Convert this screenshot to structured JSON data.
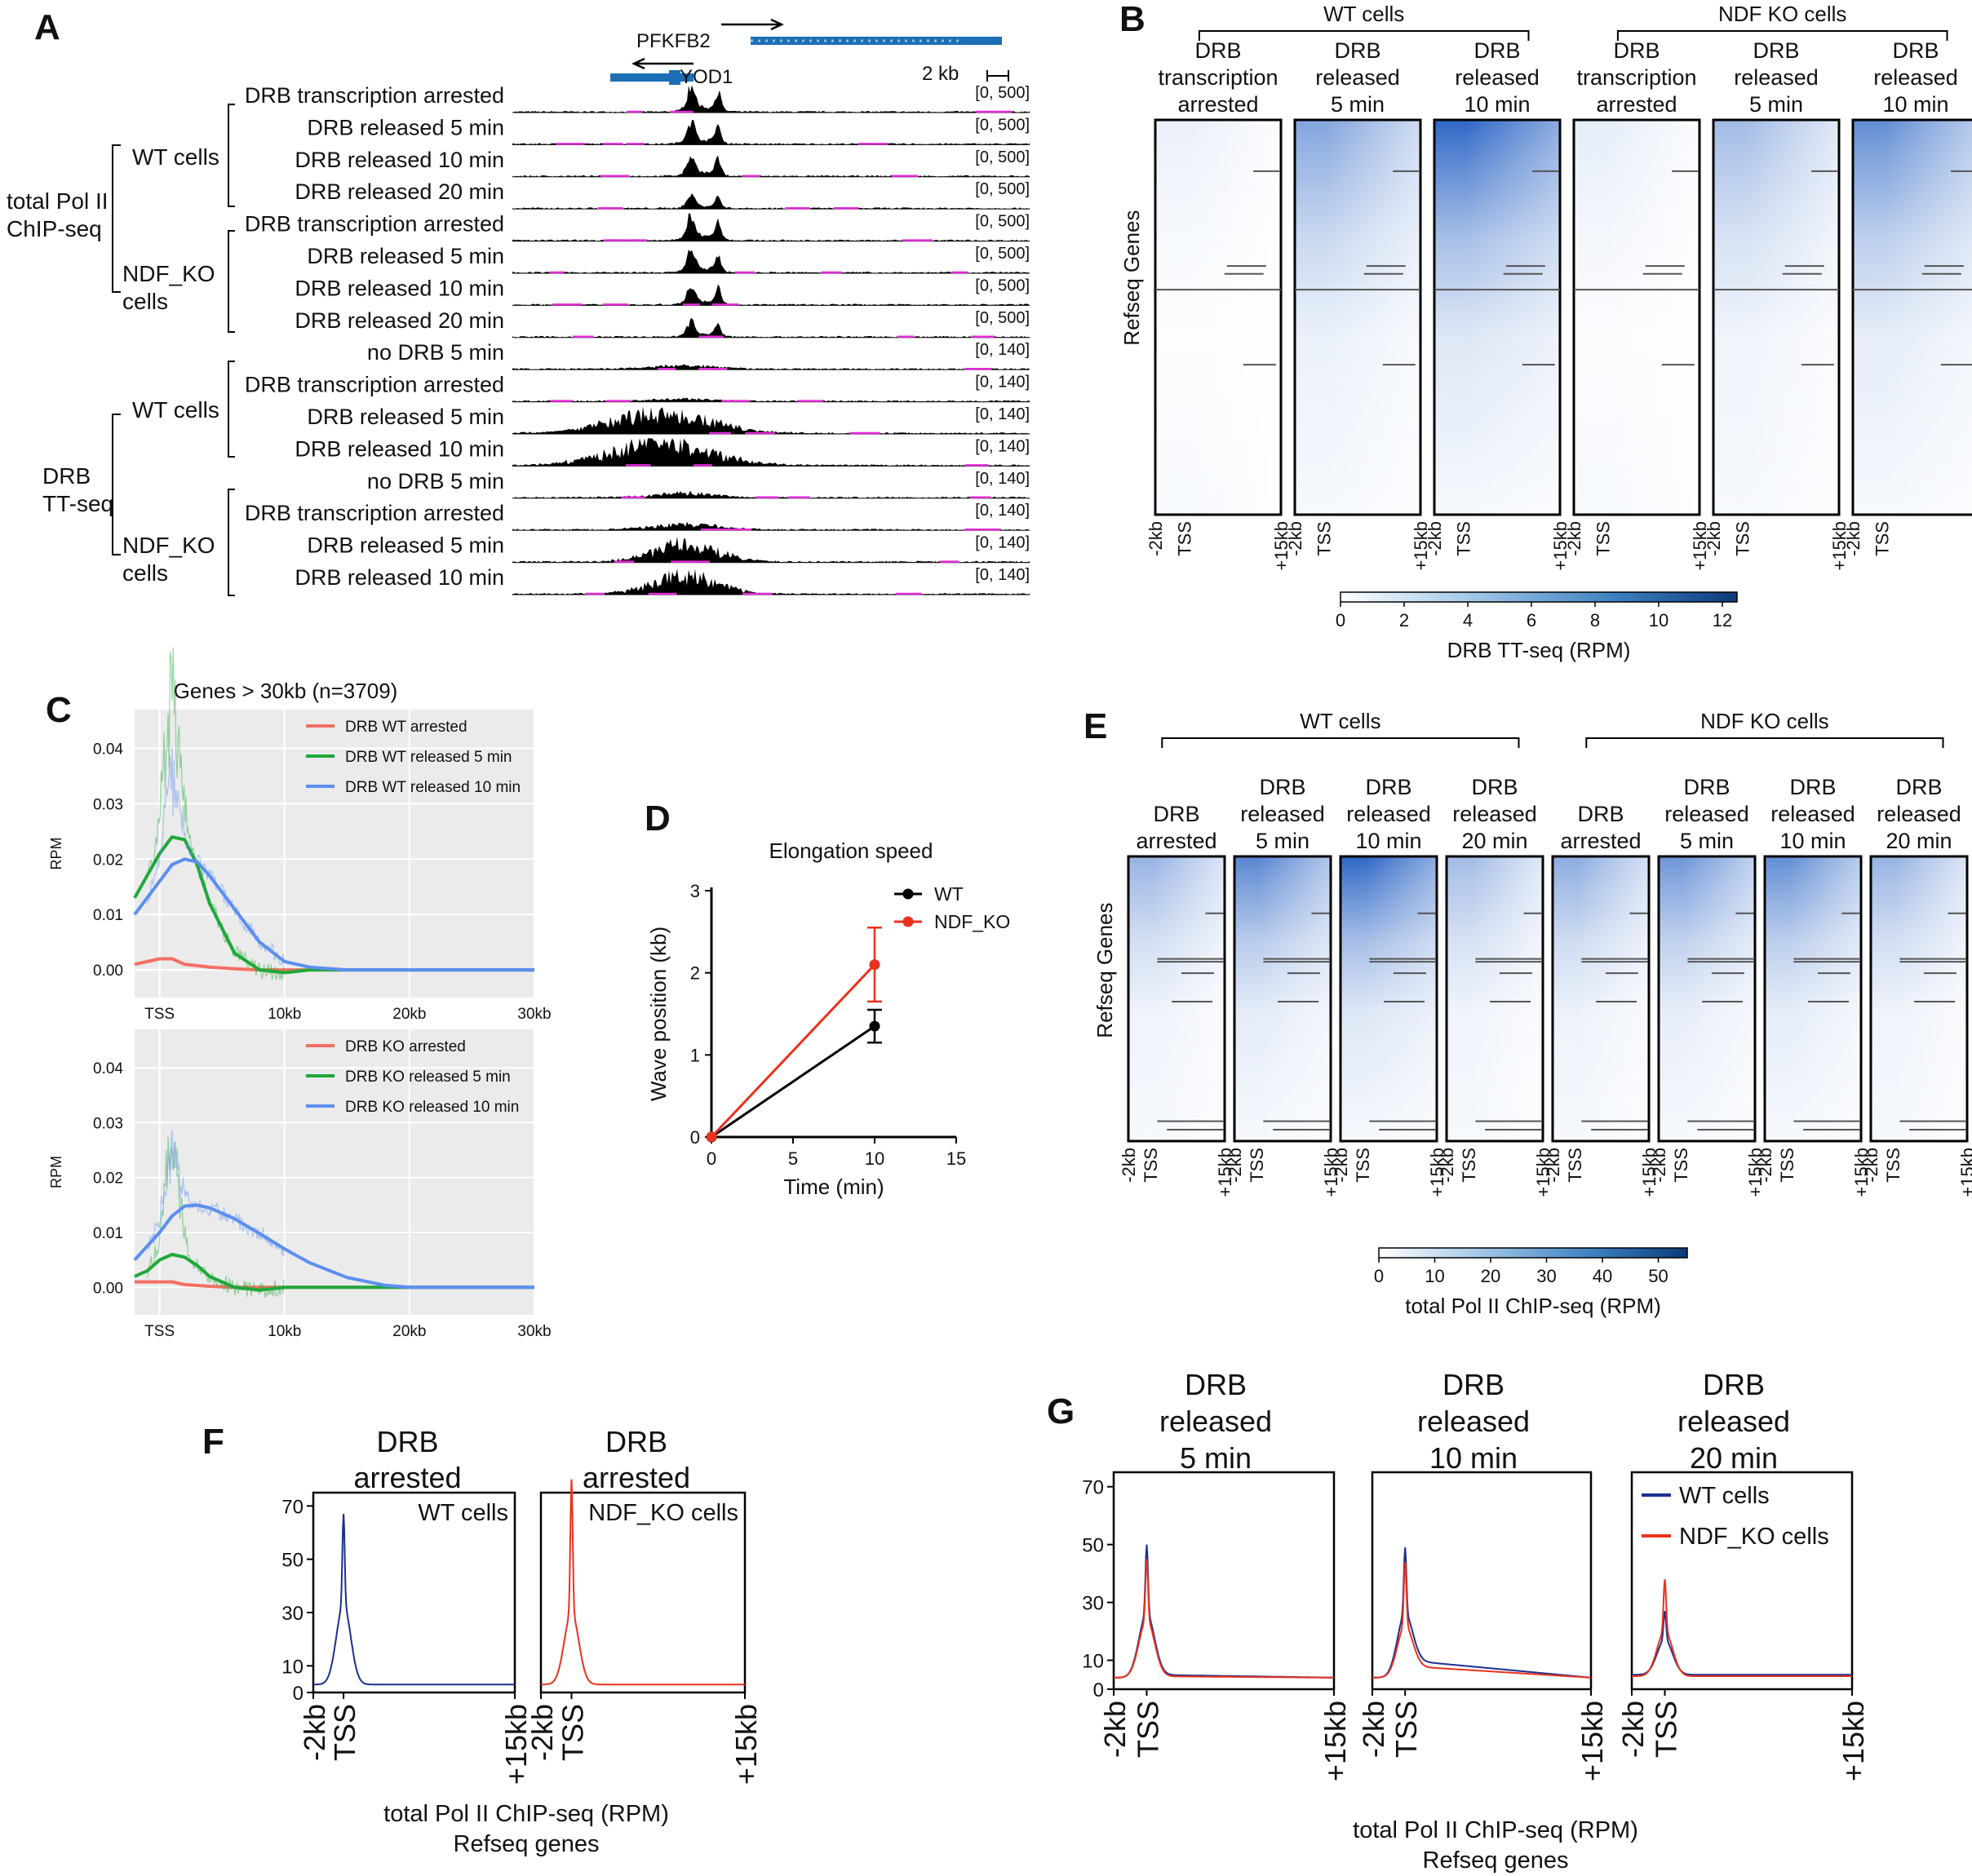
{
  "panels": {
    "A": {
      "label": "A",
      "genes": {
        "gene1": "PFKFB2",
        "gene2": "YOD1",
        "scale": "2 kb"
      },
      "groups": {
        "pol2": "total Pol II\nChIP-seq",
        "tt": "DRB\nTT-seq",
        "wt": "WT cells",
        "ko": "NDF_KO\ncells"
      },
      "tracks": [
        {
          "label": "DRB transcription arrested",
          "range": "[0, 500]",
          "kind": "chip",
          "amp": 1.0
        },
        {
          "label": "DRB released 5 min",
          "range": "[0, 500]",
          "kind": "chip",
          "amp": 0.9
        },
        {
          "label": "DRB released 10 min",
          "range": "[0, 500]",
          "kind": "chip",
          "amp": 0.8
        },
        {
          "label": "DRB released 20 min",
          "range": "[0, 500]",
          "kind": "chip",
          "amp": 0.55
        },
        {
          "label": "DRB transcription arrested",
          "range": "[0, 500]",
          "kind": "chip",
          "amp": 1.0
        },
        {
          "label": "DRB released 5 min",
          "range": "[0, 500]",
          "kind": "chip",
          "amp": 0.85
        },
        {
          "label": "DRB released 10 min",
          "range": "[0, 500]",
          "kind": "chip",
          "amp": 0.8
        },
        {
          "label": "DRB released 20 min",
          "range": "[0, 500]",
          "kind": "chip",
          "amp": 0.6
        },
        {
          "label": "no DRB 5 min",
          "range": "[0, 140]",
          "kind": "tt",
          "amp": 0.15
        },
        {
          "label": "DRB transcription arrested",
          "range": "[0, 140]",
          "kind": "tt",
          "amp": 0.1
        },
        {
          "label": "DRB released 5 min",
          "range": "[0, 140]",
          "kind": "tt",
          "amp": 0.9
        },
        {
          "label": "DRB released 10 min",
          "range": "[0, 140]",
          "kind": "tt",
          "amp": 1.0
        },
        {
          "label": "no DRB 5 min",
          "range": "[0, 140]",
          "kind": "tt",
          "amp": 0.2
        },
        {
          "label": "DRB transcription arrested",
          "range": "[0, 140]",
          "kind": "tt",
          "amp": 0.25
        },
        {
          "label": "DRB released 5 min",
          "range": "[0, 140]",
          "kind": "tt",
          "amp": 0.8
        },
        {
          "label": "DRB released 10 min",
          "range": "[0, 140]",
          "kind": "tt",
          "amp": 0.85
        }
      ]
    },
    "B": {
      "label": "B",
      "group_wt": "WT cells",
      "group_ko": "NDF KO cells",
      "columns": [
        {
          "title": "DRB\ntranscription\narrested",
          "intensity": 0.1
        },
        {
          "title": "DRB\nreleased\n5 min",
          "intensity": 0.6
        },
        {
          "title": "DRB\nreleased\n10 min",
          "intensity": 1.0
        },
        {
          "title": "DRB\ntranscription\narrested",
          "intensity": 0.12
        },
        {
          "title": "DRB\nreleased\n5 min",
          "intensity": 0.45
        },
        {
          "title": "DRB\nreleased\n10 min",
          "intensity": 0.75
        }
      ],
      "ylabel": "Refseq Genes",
      "xticks": [
        "-2kb",
        "TSS",
        "+15kb"
      ],
      "colorbar_ticks": [
        "0",
        "2",
        "4",
        "6",
        "8",
        "10",
        "12"
      ],
      "colorbar_label": "DRB TT-seq (RPM)"
    },
    "E": {
      "label": "E",
      "group_wt": "WT cells",
      "group_ko": "NDF KO cells",
      "columns": [
        {
          "title": "DRB\narrested",
          "intensity": 0.5
        },
        {
          "title": "DRB\nreleased\n5 min",
          "intensity": 0.8
        },
        {
          "title": "DRB\nreleased\n10 min",
          "intensity": 1.0
        },
        {
          "title": "DRB\nreleased\n20 min",
          "intensity": 0.45
        },
        {
          "title": "DRB\narrested",
          "intensity": 0.55
        },
        {
          "title": "DRB\nreleased\n5 min",
          "intensity": 0.7
        },
        {
          "title": "DRB\nreleased\n10 min",
          "intensity": 0.75
        },
        {
          "title": "DRB\nreleased\n20 min",
          "intensity": 0.5
        }
      ],
      "ylabel": "Refseq Genes",
      "xticks": [
        "-2kb",
        "TSS",
        "+15kb"
      ],
      "colorbar_ticks": [
        "0",
        "10",
        "20",
        "30",
        "40",
        "50"
      ],
      "colorbar_label": "total Pol II ChIP-seq (RPM)"
    }
  },
  "chart_data": [
    {
      "id": "C-top",
      "label": "C",
      "type": "line",
      "title": "Genes > 30kb (n=3709)",
      "ylabel": "RPM",
      "xlabel": "",
      "xlim": [
        -2,
        30
      ],
      "ylim": [
        -0.005,
        0.047
      ],
      "xticks": [
        {
          "v": 0,
          "t": "TSS"
        },
        {
          "v": 10,
          "t": "10kb"
        },
        {
          "v": 20,
          "t": "20kb"
        },
        {
          "v": 30,
          "t": "30kb"
        }
      ],
      "yticks": [
        0.0,
        0.01,
        0.02,
        0.03,
        0.04
      ],
      "ytick_labels": [
        "0.00",
        "0.01",
        "0.02",
        "0.03",
        "0.04"
      ],
      "series": [
        {
          "name": "DRB WT arrested",
          "color": "#f36f63",
          "x": [
            -2,
            0,
            1,
            2,
            4,
            6,
            8,
            10,
            30
          ],
          "y": [
            0.001,
            0.002,
            0.002,
            0.001,
            0.0005,
            0.0002,
            0.0,
            0.0,
            0.0
          ]
        },
        {
          "name": "DRB WT released 5 min",
          "color": "#1fa83a",
          "x": [
            -2,
            -1,
            0,
            1,
            2,
            3,
            4,
            6,
            8,
            10,
            12,
            15,
            30
          ],
          "y": [
            0.013,
            0.017,
            0.021,
            0.024,
            0.0235,
            0.019,
            0.012,
            0.003,
            0.0,
            -0.0005,
            0.0,
            0.0,
            0.0
          ]
        },
        {
          "name": "DRB WT released 10 min",
          "color": "#5b8ff0",
          "x": [
            -2,
            -1,
            0,
            1,
            2,
            3,
            4,
            6,
            8,
            10,
            12,
            15,
            20,
            30
          ],
          "y": [
            0.01,
            0.013,
            0.016,
            0.019,
            0.02,
            0.0195,
            0.017,
            0.011,
            0.005,
            0.0015,
            0.0005,
            0.0,
            0.0,
            0.0
          ]
        }
      ]
    },
    {
      "id": "C-bottom",
      "type": "line",
      "ylabel": "RPM",
      "xlim": [
        -2,
        30
      ],
      "ylim": [
        -0.005,
        0.047
      ],
      "xticks": [
        {
          "v": 0,
          "t": "TSS"
        },
        {
          "v": 10,
          "t": "10kb"
        },
        {
          "v": 20,
          "t": "20kb"
        },
        {
          "v": 30,
          "t": "30kb"
        }
      ],
      "yticks": [
        0.0,
        0.01,
        0.02,
        0.03,
        0.04
      ],
      "ytick_labels": [
        "0.00",
        "0.01",
        "0.02",
        "0.03",
        "0.04"
      ],
      "series": [
        {
          "name": "DRB KO arrested",
          "color": "#f36f63",
          "x": [
            -2,
            0,
            1,
            2,
            4,
            6,
            8,
            30
          ],
          "y": [
            0.001,
            0.001,
            0.001,
            0.0005,
            0.0002,
            0.0,
            0.0,
            0.0
          ]
        },
        {
          "name": "DRB KO released 5 min",
          "color": "#1fa83a",
          "x": [
            -2,
            -1,
            0,
            1,
            2,
            3,
            4,
            6,
            8,
            10,
            30
          ],
          "y": [
            0.002,
            0.003,
            0.005,
            0.006,
            0.0055,
            0.004,
            0.002,
            0.0,
            -0.0005,
            0.0,
            0.0
          ]
        },
        {
          "name": "DRB KO released 10 min",
          "color": "#5b8ff0",
          "x": [
            -2,
            -1,
            0,
            1,
            2,
            3,
            4,
            6,
            8,
            10,
            12,
            15,
            18,
            20,
            25,
            30
          ],
          "y": [
            0.005,
            0.0075,
            0.01,
            0.013,
            0.0148,
            0.015,
            0.0145,
            0.0125,
            0.0098,
            0.007,
            0.0045,
            0.0018,
            0.0004,
            0.0,
            0.0,
            0.0
          ]
        }
      ]
    },
    {
      "id": "D",
      "label": "D",
      "type": "line",
      "title": "Elongation speed",
      "xlabel": "Time (min)",
      "ylabel": "Wave position (kb)",
      "xlim": [
        0,
        15
      ],
      "ylim": [
        0,
        3
      ],
      "xticks": [
        0,
        5,
        10,
        15
      ],
      "yticks": [
        0,
        1,
        2,
        3
      ],
      "series": [
        {
          "name": "WT",
          "color": "#000000",
          "x": [
            0,
            10
          ],
          "y": [
            0,
            1.35
          ],
          "err": [
            0,
            0.2
          ]
        },
        {
          "name": "NDF_KO",
          "color": "#e8321e",
          "x": [
            0,
            10
          ],
          "y": [
            0,
            2.1
          ],
          "err": [
            0,
            0.45
          ]
        }
      ]
    },
    {
      "id": "F",
      "label": "F",
      "type": "line",
      "panels": [
        {
          "title": "DRB\narrested",
          "legend": "WT cells",
          "series": [
            {
              "name": "WT cells",
              "color": "#1d2f8f",
              "peak": 67,
              "shoulder": 33,
              "base": 3
            }
          ]
        },
        {
          "title": "DRB\narrested",
          "legend": "NDF_KO cells",
          "series": [
            {
              "name": "NDF_KO cells",
              "color": "#e8321e",
              "peak": 80,
              "shoulder": 30,
              "base": 3
            }
          ]
        }
      ],
      "yticks": [
        0,
        10,
        30,
        50,
        70
      ],
      "ylim": [
        0,
        75
      ],
      "xticks": [
        "-2kb",
        "TSS",
        "+15kb"
      ],
      "xlabel": "total Pol II ChIP-seq (RPM)\nRefseq genes"
    },
    {
      "id": "G",
      "label": "G",
      "type": "line",
      "panels": [
        {
          "title": "DRB\nreleased\n5 min",
          "series": [
            {
              "name": "WT cells",
              "color": "#1d2f8f",
              "peak": 50,
              "shoulder": 26,
              "base": 4,
              "mid": 5
            },
            {
              "name": "NDF_KO cells",
              "color": "#e8321e",
              "peak": 45,
              "shoulder": 24,
              "base": 4,
              "mid": 4.5
            }
          ]
        },
        {
          "title": "DRB\nreleased\n10 min",
          "series": [
            {
              "name": "WT cells",
              "color": "#1d2f8f",
              "peak": 49,
              "shoulder": 26,
              "base": 4,
              "mid": 10
            },
            {
              "name": "NDF_KO cells",
              "color": "#e8321e",
              "peak": 44,
              "shoulder": 22,
              "base": 4,
              "mid": 8
            }
          ]
        },
        {
          "title": "DRB\nreleased\n20 min",
          "legend": true,
          "series": [
            {
              "name": "WT cells",
              "color": "#1d2f8f",
              "peak": 27,
              "shoulder": 17,
              "base": 5,
              "mid": 5
            },
            {
              "name": "NDF_KO cells",
              "color": "#e8321e",
              "peak": 38,
              "shoulder": 20,
              "base": 4.5,
              "mid": 4.5
            }
          ]
        }
      ],
      "yticks": [
        0,
        10,
        30,
        50,
        70
      ],
      "ylim": [
        0,
        75
      ],
      "xticks": [
        "-2kb",
        "TSS",
        "+15kb"
      ],
      "xlabel": "total Pol II ChIP-seq (RPM)\nRefseq genes"
    }
  ]
}
